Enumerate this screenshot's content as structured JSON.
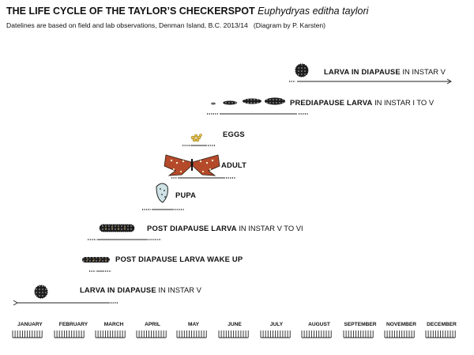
{
  "header": {
    "title": "THE LIFE CYCLE OF THE TAYLOR’S CHECKERSPOT",
    "species": "Euphydryas editha taylori",
    "subtitle": "Datelines are based on field and lab observations, Denman Island, B.C.  2013/14",
    "credit": "(Diagram by P. Karsten)"
  },
  "stages": [
    {
      "name": "LARVA  IN DIAPAUSE",
      "detail": " IN INSTAR V",
      "icon": "larva-diapause-icon"
    },
    {
      "name": "PREDIAPAUSE LARVA",
      "detail": "  IN INSTAR I TO V",
      "icon": "growing-larvae-icon"
    },
    {
      "name": "EGGS",
      "detail": "",
      "icon": "egg-cluster-icon"
    },
    {
      "name": "ADULT",
      "detail": "",
      "icon": "butterfly-icon"
    },
    {
      "name": "PUPA",
      "detail": "",
      "icon": "pupa-icon"
    },
    {
      "name": "POST DIAPAUSE LARVA",
      "detail": " IN INSTAR V TO VI",
      "icon": "caterpillar-icon"
    },
    {
      "name": "POST DIAPAUSE LARVA WAKE UP",
      "detail": "",
      "icon": "caterpillar-icon"
    },
    {
      "name": "LARVA  IN DIAPAUSE",
      "detail": " IN INSTAR V",
      "icon": "larva-diapause-icon"
    }
  ],
  "months": [
    "JANUARY",
    "FEBRUARY",
    "MARCH",
    "APRIL",
    "MAY",
    "JUNE",
    "JULY",
    "AUGUST",
    "SEPTEMBER",
    "NOVEMBER",
    "DECEMBER"
  ]
}
